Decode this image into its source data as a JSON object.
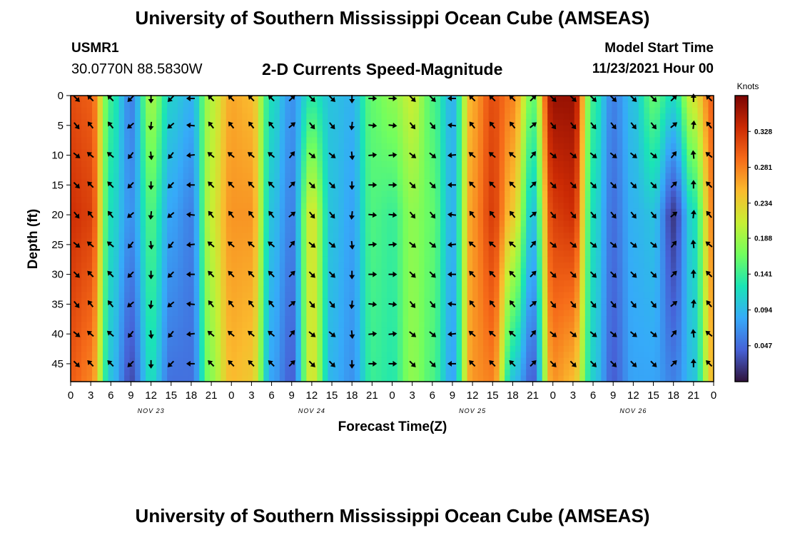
{
  "header": {
    "title": "University of Southern Mississippi Ocean Cube (AMSEAS)",
    "station_id": "USMR1",
    "coordinates": "30.0770N  88.5830W",
    "subtitle": "2-D Currents Speed-Magnitude",
    "model_start_label": "Model Start Time",
    "model_start_value": "11/23/2021 Hour 00"
  },
  "footer": {
    "title": "University of Southern Mississippi Ocean Cube (AMSEAS)"
  },
  "chart_data": {
    "type": "heatmap",
    "title": "2-D Currents Speed-Magnitude",
    "xlabel": "Forecast Time(Z)",
    "ylabel": "Depth (ft)",
    "x_hours": [
      0,
      3,
      6,
      9,
      12,
      15,
      18,
      21,
      24,
      27,
      30,
      33,
      36,
      39,
      42,
      45,
      48,
      51,
      54,
      57,
      60,
      63,
      66,
      69,
      72,
      75,
      78,
      81,
      84,
      87,
      90,
      93,
      96
    ],
    "x_tick_labels": [
      "0",
      "3",
      "6",
      "9",
      "12",
      "15",
      "18",
      "21",
      "0",
      "3",
      "6",
      "9",
      "12",
      "15",
      "18",
      "21",
      "0",
      "3",
      "6",
      "9",
      "12",
      "15",
      "18",
      "21",
      "0",
      "3",
      "6",
      "9",
      "12",
      "15",
      "18",
      "21",
      "0"
    ],
    "date_labels": [
      {
        "hour": 12,
        "label": "NOV 23"
      },
      {
        "hour": 36,
        "label": "NOV 24"
      },
      {
        "hour": 60,
        "label": "NOV 25"
      },
      {
        "hour": 84,
        "label": "NOV 26"
      }
    ],
    "y_depths_ft": [
      0,
      5,
      10,
      15,
      20,
      25,
      30,
      35,
      40,
      45
    ],
    "y_tick_labels": [
      "0",
      "5",
      "10",
      "15",
      "20",
      "25",
      "30",
      "35",
      "40",
      "45"
    ],
    "ylim": [
      48,
      0
    ],
    "xlim": [
      0,
      96
    ],
    "colorbar": {
      "title": "Knots",
      "min": 0.0,
      "max": 0.375,
      "tick_values": [
        0.047,
        0.094,
        0.141,
        0.188,
        0.234,
        0.281,
        0.328
      ],
      "tick_labels": [
        "0.047",
        "0.094",
        "0.141",
        "0.188",
        "0.234",
        "0.281",
        "0.328"
      ],
      "stops": [
        "#30123b",
        "#4662d7",
        "#36aaf9",
        "#1ae4b6",
        "#72fe5e",
        "#c7ef34",
        "#fabb2e",
        "#f66b19",
        "#cb2a04",
        "#7a0403"
      ]
    },
    "surface_speed_knots": [
      0.31,
      0.3,
      0.14,
      0.06,
      0.19,
      0.11,
      0.09,
      0.2,
      0.26,
      0.25,
      0.12,
      0.07,
      0.13,
      0.1,
      0.09,
      0.16,
      0.18,
      0.21,
      0.15,
      0.09,
      0.26,
      0.31,
      0.28,
      0.16,
      0.36,
      0.36,
      0.14,
      0.06,
      0.1,
      0.16,
      0.12,
      0.22,
      0.3
    ],
    "mid_speed_knots": [
      0.33,
      0.32,
      0.12,
      0.07,
      0.15,
      0.08,
      0.06,
      0.21,
      0.27,
      0.27,
      0.1,
      0.06,
      0.22,
      0.1,
      0.08,
      0.15,
      0.14,
      0.18,
      0.16,
      0.09,
      0.27,
      0.32,
      0.24,
      0.1,
      0.32,
      0.33,
      0.12,
      0.05,
      0.09,
      0.1,
      0.02,
      0.12,
      0.28
    ],
    "bottom_speed_knots": [
      0.3,
      0.28,
      0.1,
      0.03,
      0.12,
      0.05,
      0.05,
      0.18,
      0.25,
      0.24,
      0.08,
      0.04,
      0.22,
      0.09,
      0.07,
      0.14,
      0.13,
      0.18,
      0.15,
      0.08,
      0.27,
      0.28,
      0.1,
      0.04,
      0.27,
      0.25,
      0.11,
      0.04,
      0.08,
      0.08,
      0.06,
      0.1,
      0.25
    ],
    "arrow_directions_deg": {
      "note": "Current direction (toward, compass degrees) at each forecast time column",
      "values": [
        135,
        315,
        315,
        225,
        180,
        225,
        270,
        315,
        315,
        315,
        315,
        45,
        135,
        135,
        180,
        90,
        90,
        135,
        135,
        270,
        315,
        315,
        315,
        45,
        135,
        135,
        135,
        135,
        135,
        135,
        45,
        0,
        315
      ]
    }
  }
}
